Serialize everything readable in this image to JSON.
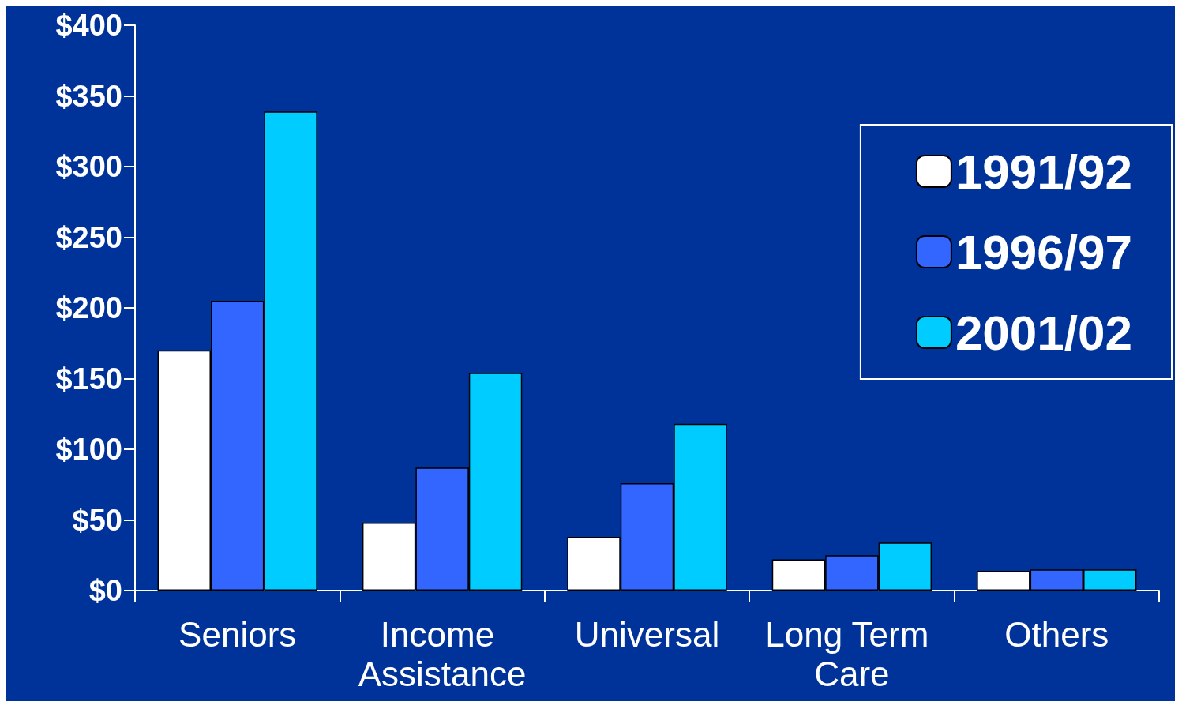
{
  "chart_data": {
    "type": "bar",
    "categories": [
      "Seniors",
      "Income Assistance",
      "Universal",
      "Long Term Care",
      "Others"
    ],
    "series": [
      {
        "name": "1991/92",
        "color": "#ffffff",
        "values": [
          170,
          48,
          38,
          22,
          14
        ]
      },
      {
        "name": "1996/97",
        "color": "#3366ff",
        "values": [
          205,
          87,
          76,
          25,
          15
        ]
      },
      {
        "name": "2001/02",
        "color": "#00ccff",
        "values": [
          339,
          154,
          118,
          34,
          15
        ]
      }
    ],
    "ylim": [
      0,
      400
    ],
    "yticks": [
      {
        "value": 0,
        "label": "$0"
      },
      {
        "value": 50,
        "label": "$50"
      },
      {
        "value": 100,
        "label": "$100"
      },
      {
        "value": 150,
        "label": "$150"
      },
      {
        "value": 200,
        "label": "$200"
      },
      {
        "value": 250,
        "label": "$250"
      },
      {
        "value": 300,
        "label": "$300"
      },
      {
        "value": 350,
        "label": "$350"
      },
      {
        "value": 400,
        "label": "$400"
      }
    ],
    "grid": false,
    "legend": "top right"
  }
}
